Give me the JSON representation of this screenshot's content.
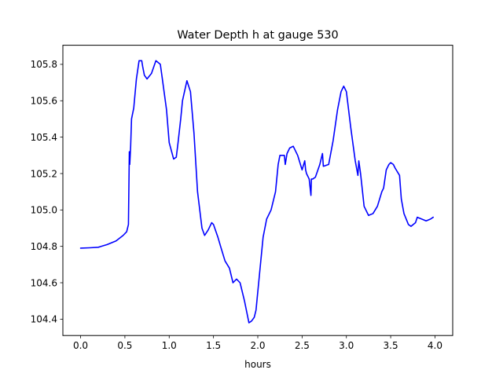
{
  "chart_data": {
    "type": "line",
    "title": "Water Depth h at gauge 530",
    "xlabel": "hours",
    "ylabel": "",
    "xlim": [
      -0.2,
      4.2
    ],
    "ylim": [
      104.31,
      105.905
    ],
    "xticks": [
      0.0,
      0.5,
      1.0,
      1.5,
      2.0,
      2.5,
      3.0,
      3.5,
      4.0
    ],
    "xtick_labels": [
      "0.0",
      "0.5",
      "1.0",
      "1.5",
      "2.0",
      "2.5",
      "3.0",
      "3.5",
      "4.0"
    ],
    "yticks": [
      104.4,
      104.6,
      104.8,
      105.0,
      105.2,
      105.4,
      105.6,
      105.8
    ],
    "ytick_labels": [
      "104.4",
      "104.6",
      "104.8",
      "105.0",
      "105.2",
      "105.4",
      "105.6",
      "105.8"
    ],
    "grid": false,
    "series": [
      {
        "color": "#0000ff",
        "x": [
          0.0,
          0.1,
          0.2,
          0.3,
          0.4,
          0.48,
          0.52,
          0.54,
          0.55,
          0.555,
          0.56,
          0.565,
          0.575,
          0.6,
          0.63,
          0.66,
          0.69,
          0.7,
          0.72,
          0.75,
          0.8,
          0.85,
          0.9,
          0.92,
          0.97,
          1.0,
          1.05,
          1.08,
          1.1,
          1.13,
          1.15,
          1.2,
          1.24,
          1.28,
          1.32,
          1.37,
          1.4,
          1.44,
          1.48,
          1.5,
          1.55,
          1.58,
          1.63,
          1.68,
          1.72,
          1.76,
          1.8,
          1.85,
          1.9,
          1.93,
          1.96,
          1.98,
          2.02,
          2.06,
          2.1,
          2.15,
          2.2,
          2.23,
          2.25,
          2.3,
          2.31,
          2.33,
          2.36,
          2.4,
          2.45,
          2.5,
          2.53,
          2.54,
          2.55,
          2.58,
          2.6,
          2.605,
          2.62,
          2.65,
          2.7,
          2.73,
          2.74,
          2.8,
          2.85,
          2.9,
          2.94,
          2.97,
          3.0,
          3.05,
          3.1,
          3.13,
          3.14,
          3.16,
          3.18,
          3.2,
          3.25,
          3.3,
          3.35,
          3.4,
          3.42,
          3.45,
          3.48,
          3.5,
          3.53,
          3.55,
          3.6,
          3.62,
          3.65,
          3.7,
          3.73,
          3.78,
          3.8,
          3.85,
          3.9,
          3.95,
          3.98
        ],
        "values": [
          104.79,
          104.792,
          104.795,
          104.81,
          104.83,
          104.86,
          104.88,
          104.92,
          105.32,
          105.25,
          105.3,
          105.35,
          105.5,
          105.56,
          105.72,
          105.82,
          105.82,
          105.79,
          105.74,
          105.72,
          105.75,
          105.82,
          105.8,
          105.73,
          105.55,
          105.37,
          105.28,
          105.29,
          105.37,
          105.5,
          105.6,
          105.71,
          105.65,
          105.42,
          105.1,
          104.9,
          104.86,
          104.89,
          104.93,
          104.92,
          104.85,
          104.8,
          104.72,
          104.68,
          104.6,
          104.62,
          104.6,
          104.5,
          104.38,
          104.39,
          104.41,
          104.45,
          104.65,
          104.85,
          104.95,
          105.0,
          105.1,
          105.25,
          105.3,
          105.3,
          105.25,
          105.31,
          105.34,
          105.35,
          105.3,
          105.22,
          105.27,
          105.22,
          105.2,
          105.17,
          105.08,
          105.17,
          105.17,
          105.18,
          105.25,
          105.31,
          105.24,
          105.25,
          105.38,
          105.55,
          105.65,
          105.68,
          105.65,
          105.45,
          105.27,
          105.19,
          105.27,
          105.2,
          105.11,
          105.02,
          104.97,
          104.98,
          105.02,
          105.1,
          105.12,
          105.22,
          105.25,
          105.26,
          105.25,
          105.23,
          105.19,
          105.06,
          104.98,
          104.92,
          104.91,
          104.93,
          104.96,
          104.95,
          104.94,
          104.95,
          104.96
        ]
      }
    ]
  }
}
